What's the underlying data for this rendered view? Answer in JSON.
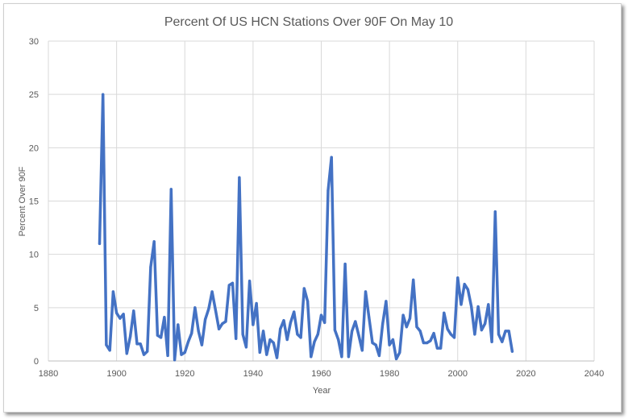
{
  "chart_data": {
    "type": "line",
    "title": "Percent Of US HCN Stations Over 90F On May 10",
    "xlabel": "Year",
    "ylabel": "Percent Over 90F",
    "xlim": [
      1880,
      2040
    ],
    "ylim": [
      0,
      30
    ],
    "x_ticks": [
      1880,
      1900,
      1920,
      1940,
      1960,
      1980,
      2000,
      2020,
      2040
    ],
    "y_ticks": [
      0,
      5,
      10,
      15,
      20,
      25,
      30
    ],
    "grid": true,
    "line_color": "#4472c4",
    "series": [
      {
        "x": [
          1895,
          1896,
          1897,
          1898,
          1899,
          1900,
          1901,
          1902,
          1903,
          1904,
          1905,
          1906,
          1907,
          1908,
          1909,
          1910,
          1911,
          1912,
          1913,
          1914,
          1915,
          1916,
          1917,
          1918,
          1919,
          1920,
          1921,
          1922,
          1923,
          1924,
          1925,
          1926,
          1927,
          1928,
          1929,
          1930,
          1931,
          1932,
          1933,
          1934,
          1935,
          1936,
          1937,
          1938,
          1939,
          1940,
          1941,
          1942,
          1943,
          1944,
          1945,
          1946,
          1947,
          1948,
          1949,
          1950,
          1951,
          1952,
          1953,
          1954,
          1955,
          1956,
          1957,
          1958,
          1959,
          1960,
          1961,
          1962,
          1963,
          1964,
          1965,
          1966,
          1967,
          1968,
          1969,
          1970,
          1971,
          1972,
          1973,
          1974,
          1975,
          1976,
          1977,
          1978,
          1979,
          1980,
          1981,
          1982,
          1983,
          1984,
          1985,
          1986,
          1987,
          1988,
          1989,
          1990,
          1991,
          1992,
          1993,
          1994,
          1995,
          1996,
          1997,
          1998,
          1999,
          2000,
          2001,
          2002,
          2003,
          2004,
          2005,
          2006,
          2007,
          2008,
          2009,
          2010,
          2011,
          2012,
          2013,
          2014,
          2015,
          2016
        ],
        "values": [
          11.0,
          25.0,
          1.5,
          1.0,
          6.5,
          4.5,
          4.0,
          4.4,
          0.7,
          2.3,
          4.7,
          1.6,
          1.6,
          0.6,
          0.9,
          8.8,
          11.2,
          2.4,
          2.2,
          4.1,
          0.5,
          16.1,
          0.1,
          3.4,
          0.6,
          0.8,
          1.8,
          2.6,
          5.0,
          2.8,
          1.5,
          3.9,
          4.9,
          6.5,
          4.8,
          3.0,
          3.5,
          3.7,
          7.1,
          7.3,
          2.1,
          17.2,
          2.5,
          1.3,
          7.5,
          3.4,
          5.4,
          0.8,
          2.8,
          0.6,
          2.0,
          1.7,
          0.3,
          3.0,
          3.8,
          2.0,
          3.6,
          4.6,
          2.5,
          2.2,
          6.8,
          5.6,
          0.4,
          1.8,
          2.5,
          4.3,
          3.6,
          16.0,
          19.1,
          2.9,
          2.0,
          0.4,
          9.1,
          0.4,
          2.8,
          3.7,
          2.4,
          1.0,
          6.5,
          4.1,
          1.7,
          1.5,
          0.5,
          3.5,
          5.6,
          1.5,
          2.0,
          0.2,
          0.8,
          4.3,
          3.2,
          4.0,
          7.6,
          3.2,
          2.8,
          1.7,
          1.7,
          1.9,
          2.6,
          1.2,
          1.2,
          4.5,
          3.0,
          2.5,
          2.2,
          7.8,
          5.3,
          7.2,
          6.7,
          5.1,
          2.5,
          5.1,
          2.9,
          3.5,
          5.3,
          1.8,
          14.0,
          2.5,
          1.8,
          2.8,
          2.8,
          0.9
        ]
      }
    ]
  }
}
